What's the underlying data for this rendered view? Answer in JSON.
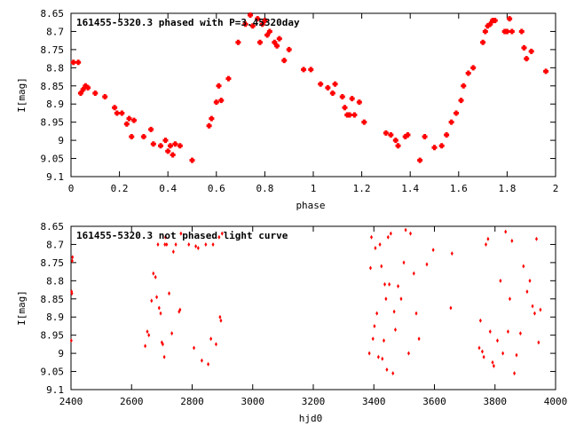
{
  "chart_data": [
    {
      "type": "scatter",
      "title": "161455-5320.3 phased with P=3.45320day",
      "xlabel": "phase",
      "ylabel": "I[mag]",
      "xlim": [
        0,
        2
      ],
      "ylim": [
        9.1,
        8.65
      ],
      "y_inverted": true,
      "xticks": [
        "0",
        "0.2",
        "0.4",
        "0.6",
        "0.8",
        "1",
        "1.2",
        "1.4",
        "1.6",
        "1.8",
        "2"
      ],
      "yticks": [
        "8.65",
        "8.7",
        "8.75",
        "8.8",
        "8.85",
        "8.9",
        "8.95",
        "9",
        "9.05",
        "9.1"
      ],
      "grid": false,
      "marker": "filled-square",
      "color": "#ff0000",
      "series": [
        {
          "x": [
            0.01,
            0.03,
            0.04,
            0.06,
            0.05,
            0.07,
            0.1,
            0.14,
            0.18,
            0.19,
            0.21,
            0.23,
            0.24,
            0.25,
            0.26,
            0.3,
            0.33,
            0.34,
            0.37,
            0.39,
            0.4,
            0.41,
            0.42,
            0.43,
            0.45,
            0.5,
            0.57,
            0.58,
            0.6,
            0.61,
            0.62,
            0.65,
            0.69,
            0.72,
            0.74,
            0.75,
            0.77,
            0.78,
            0.79,
            0.8,
            0.81,
            0.82,
            0.84,
            0.85,
            0.86,
            0.88,
            0.9,
            0.96,
            0.99,
            1.03,
            1.06,
            1.08,
            1.09,
            1.12,
            1.13,
            1.14,
            1.15,
            1.16,
            1.17,
            1.19,
            1.21,
            1.3,
            1.32,
            1.34,
            1.35,
            1.38,
            1.39,
            1.44,
            1.46,
            1.5,
            1.53,
            1.55,
            1.57,
            1.59,
            1.61,
            1.62,
            1.64,
            1.66,
            1.7,
            1.71,
            1.72,
            1.73,
            1.74,
            1.75,
            1.79,
            1.8,
            1.81,
            1.82,
            1.86,
            1.87,
            1.88,
            1.9,
            1.96
          ],
          "y": [
            8.785,
            8.785,
            8.87,
            8.85,
            8.86,
            8.855,
            8.87,
            8.88,
            8.91,
            8.925,
            8.925,
            8.955,
            8.94,
            8.99,
            8.945,
            8.99,
            8.97,
            9.01,
            9.015,
            9.0,
            9.03,
            9.015,
            9.04,
            9.01,
            9.015,
            9.055,
            8.96,
            8.94,
            8.895,
            8.85,
            8.89,
            8.83,
            8.73,
            8.68,
            8.655,
            8.685,
            8.665,
            8.73,
            8.68,
            8.67,
            8.71,
            8.7,
            8.73,
            8.74,
            8.72,
            8.78,
            8.75,
            8.805,
            8.805,
            8.845,
            8.855,
            8.87,
            8.845,
            8.88,
            8.91,
            8.93,
            8.93,
            8.885,
            8.93,
            8.895,
            8.95,
            8.98,
            8.985,
            9.0,
            9.015,
            8.99,
            8.985,
            9.055,
            8.99,
            9.02,
            9.015,
            8.985,
            8.95,
            8.925,
            8.89,
            8.85,
            8.815,
            8.8,
            8.73,
            8.7,
            8.685,
            8.68,
            8.67,
            8.67,
            8.7,
            8.7,
            8.665,
            8.7,
            8.7,
            8.745,
            8.775,
            8.755,
            8.81
          ]
        }
      ]
    },
    {
      "type": "scatter",
      "title": "161455-5320.3 not phased light curve",
      "xlabel": "hjd0",
      "ylabel": "I[mag]",
      "xlim": [
        2400,
        4000
      ],
      "ylim": [
        9.1,
        8.65
      ],
      "y_inverted": true,
      "xticks": [
        "2400",
        "2600",
        "2800",
        "3000",
        "3200",
        "3400",
        "3600",
        "3800",
        "4000"
      ],
      "yticks": [
        "8.65",
        "8.7",
        "8.75",
        "8.8",
        "8.85",
        "8.9",
        "8.95",
        "9",
        "9.05",
        "9.1"
      ],
      "grid": false,
      "marker": "small-diamond",
      "color": "#ff0000",
      "series": [
        {
          "x": [
            2401,
            2402,
            2403,
            2404,
            2405,
            2645,
            2652,
            2657,
            2666,
            2672,
            2679,
            2683,
            2687,
            2691,
            2696,
            2700,
            2703,
            2708,
            2710,
            2712,
            2716,
            2724,
            2733,
            2738,
            2746,
            2757,
            2760,
            2763,
            2789,
            2806,
            2812,
            2820,
            2832,
            2845,
            2853,
            2862,
            2869,
            2879,
            2889,
            2892,
            2895,
            2899,
            3385,
            3389,
            3392,
            3397,
            3402,
            3405,
            3410,
            3415,
            3420,
            3425,
            3428,
            3433,
            3436,
            3440,
            3443,
            3447,
            3451,
            3456,
            3463,
            3467,
            3471,
            3480,
            3490,
            3499,
            3505,
            3515,
            3521,
            3532,
            3540,
            3549,
            3575,
            3596,
            3654,
            3658,
            3748,
            3752,
            3758,
            3763,
            3770,
            3777,
            3784,
            3792,
            3796,
            3808,
            3818,
            3826,
            3835,
            3843,
            3849,
            3856,
            3864,
            3871,
            3884,
            3894,
            3906,
            3915,
            3924,
            3931,
            3937,
            3944,
            3950
          ],
          "y": [
            8.965,
            8.83,
            8.835,
            8.745,
            8.735,
            8.98,
            8.94,
            8.95,
            8.855,
            8.78,
            8.79,
            8.845,
            8.7,
            8.875,
            8.89,
            8.97,
            8.975,
            9.01,
            8.7,
            8.68,
            8.7,
            8.835,
            8.945,
            8.72,
            8.7,
            8.885,
            8.88,
            8.67,
            8.7,
            8.985,
            8.705,
            8.71,
            9.02,
            8.7,
            9.03,
            8.96,
            8.7,
            8.975,
            8.68,
            8.9,
            8.91,
            8.67,
            9.0,
            8.765,
            8.68,
            8.96,
            8.925,
            8.71,
            8.89,
            9.01,
            8.7,
            8.76,
            9.015,
            8.965,
            8.81,
            8.85,
            9.045,
            8.68,
            8.81,
            8.67,
            9.055,
            8.885,
            8.935,
            8.815,
            8.85,
            8.75,
            8.66,
            9.0,
            8.67,
            8.78,
            8.89,
            8.96,
            8.755,
            8.715,
            8.875,
            8.725,
            8.985,
            8.91,
            8.995,
            9.01,
            8.7,
            8.685,
            8.94,
            9.025,
            9.035,
            8.965,
            8.8,
            9.0,
            8.665,
            8.94,
            8.85,
            8.69,
            9.055,
            9.005,
            8.945,
            8.76,
            8.83,
            8.8,
            8.87,
            8.89,
            8.685,
            8.97,
            8.88
          ]
        }
      ]
    }
  ]
}
